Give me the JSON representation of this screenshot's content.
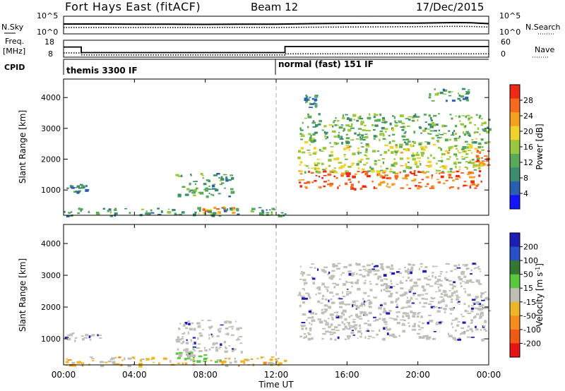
{
  "header": {
    "station": "Fort Hays East (fitACF)",
    "beam": "Beam 12",
    "date": "17/Dec/2015"
  },
  "noise_panel": {
    "left_label": "N.Sky",
    "left_ticks": [
      "10^5",
      "10^0"
    ],
    "right_label": "N.Search",
    "right_ticks": [
      "10^5",
      "10^0"
    ]
  },
  "freq_panel": {
    "left_label_1": "Freq.",
    "left_label_2": "[MHz]",
    "left_ticks": [
      "18",
      "8"
    ],
    "right_label": "Nave",
    "right_ticks": [
      "60",
      "0"
    ]
  },
  "cpid_panel": {
    "label": "CPID",
    "segments": [
      {
        "label": "themis 3300 IF",
        "start_hour": 0,
        "end_hour": 12
      },
      {
        "label": "normal (fast) 151 IF",
        "start_hour": 12,
        "end_hour": 24
      }
    ]
  },
  "colors": {
    "power_scale": [
      "#1414ff",
      "#2a5fb0",
      "#3c8c6e",
      "#5aa85a",
      "#9ac83c",
      "#f0d22a",
      "#f5a020",
      "#f56a1e",
      "#ee2a14"
    ],
    "velocity_scale": [
      "#1e1eb4",
      "#2850c8",
      "#327832",
      "#5ac83c",
      "#bebeb4",
      "#f0b428",
      "#f58c1e",
      "#f05a14",
      "#e61414"
    ],
    "ground_scatter": "#c0c0b8"
  },
  "x_axis": {
    "label": "Time UT",
    "ticks": [
      "00:00",
      "04:00",
      "08:00",
      "12:00",
      "16:00",
      "20:00",
      "00:00"
    ]
  },
  "chart_data": [
    {
      "type": "line",
      "name": "noise",
      "x_unit": "hour UT",
      "x": [
        0,
        2,
        4,
        6,
        8,
        10,
        12,
        14,
        16,
        18,
        20,
        22,
        23,
        24
      ],
      "series": [
        {
          "values": [
            5.6,
            5.6,
            5.5,
            5.5,
            5.4,
            5.5,
            5.5,
            5.8,
            6.0,
            6.1,
            6.1,
            6.4,
            6.3,
            5.8
          ]
        },
        {
          "values": [
            3.6,
            3.6,
            3.6,
            3.6,
            3.6,
            3.7,
            3.6,
            3.8,
            3.9,
            4.0,
            4.1,
            4.3,
            4.2,
            3.9
          ]
        }
      ],
      "ylim": [
        0,
        10
      ]
    },
    {
      "type": "line",
      "name": "frequency",
      "x_unit": "hour UT",
      "series": [
        {
          "x": [
            0,
            1,
            1,
            12.5,
            12.5,
            24
          ],
          "values": [
            14.0,
            14.0,
            10.7,
            10.7,
            14.3,
            14.3
          ]
        },
        {
          "x": [
            0,
            1,
            1,
            12.5,
            12.5,
            24
          ],
          "values": [
            10.5,
            10.5,
            9.3,
            9.3,
            10.0,
            10.0
          ]
        }
      ],
      "ylim": [
        8,
        18
      ]
    },
    {
      "type": "heatmap",
      "name": "power",
      "xlabel": "Time UT",
      "ylabel": "Slant Range [km]",
      "colorbar_label": "Power [dB]",
      "xlim": [
        0,
        24
      ],
      "ylim": [
        180,
        4600
      ],
      "yticks": [
        1000,
        2000,
        3000,
        4000
      ],
      "colorbar_ticks": [
        4,
        8,
        12,
        16,
        20,
        24,
        28
      ],
      "colorbar_range": [
        0,
        30
      ],
      "regions": [
        {
          "t0": 0.0,
          "t1": 1.5,
          "r0": 950,
          "r1": 1200,
          "value": 6
        },
        {
          "t0": 6.3,
          "t1": 9.5,
          "r0": 800,
          "r1": 1600,
          "value": 10
        },
        {
          "t0": 7.5,
          "t1": 10.0,
          "r0": 250,
          "r1": 480,
          "value": 22
        },
        {
          "t0": 0.0,
          "t1": 12.5,
          "r0": 180,
          "r1": 450,
          "value": 9
        },
        {
          "t0": 13.2,
          "t1": 23.6,
          "r0": 1050,
          "r1": 1650,
          "value": 26
        },
        {
          "t0": 13.2,
          "t1": 23.6,
          "r0": 1600,
          "r1": 2500,
          "value": 16
        },
        {
          "t0": 13.3,
          "t1": 24.0,
          "r0": 2500,
          "r1": 3500,
          "value": 12
        },
        {
          "t0": 23.2,
          "t1": 24.0,
          "r0": 1800,
          "r1": 2300,
          "value": 26
        },
        {
          "t0": 13.4,
          "t1": 14.2,
          "r0": 3700,
          "r1": 4100,
          "value": 8
        },
        {
          "t0": 20.5,
          "t1": 22.8,
          "r0": 3900,
          "r1": 4400,
          "value": 10
        }
      ]
    },
    {
      "type": "heatmap",
      "name": "velocity",
      "xlabel": "Time UT",
      "ylabel": "Slant Range [km]",
      "colorbar_label": "Velocity [m s^-1]",
      "xlim": [
        0,
        24
      ],
      "ylim": [
        180,
        4600
      ],
      "yticks": [
        1000,
        2000,
        3000,
        4000
      ],
      "colorbar_ticks": [
        200,
        100,
        50,
        15,
        -15,
        -50,
        -100,
        -200
      ],
      "regions": [
        {
          "t0": 0.0,
          "t1": 2.0,
          "r0": 950,
          "r1": 1200,
          "value": 0,
          "ground_scatter": true
        },
        {
          "t0": 6.3,
          "t1": 10.0,
          "r0": 600,
          "r1": 1600,
          "value": 0,
          "ground_scatter": true
        },
        {
          "t0": 6.3,
          "t1": 9.0,
          "r0": 300,
          "r1": 700,
          "value": 40
        },
        {
          "t0": 0.0,
          "t1": 12.5,
          "r0": 180,
          "r1": 450,
          "value": -40
        },
        {
          "t0": 13.2,
          "t1": 23.8,
          "r0": 1000,
          "r1": 2500,
          "value": 0,
          "ground_scatter": true
        },
        {
          "t0": 13.3,
          "t1": 23.5,
          "r0": 2500,
          "r1": 3400,
          "value": 0,
          "ground_scatter": true
        },
        {
          "t0": 23.0,
          "t1": 24.0,
          "r0": 1700,
          "r1": 2500,
          "value": 0,
          "ground_scatter": true
        }
      ]
    }
  ]
}
